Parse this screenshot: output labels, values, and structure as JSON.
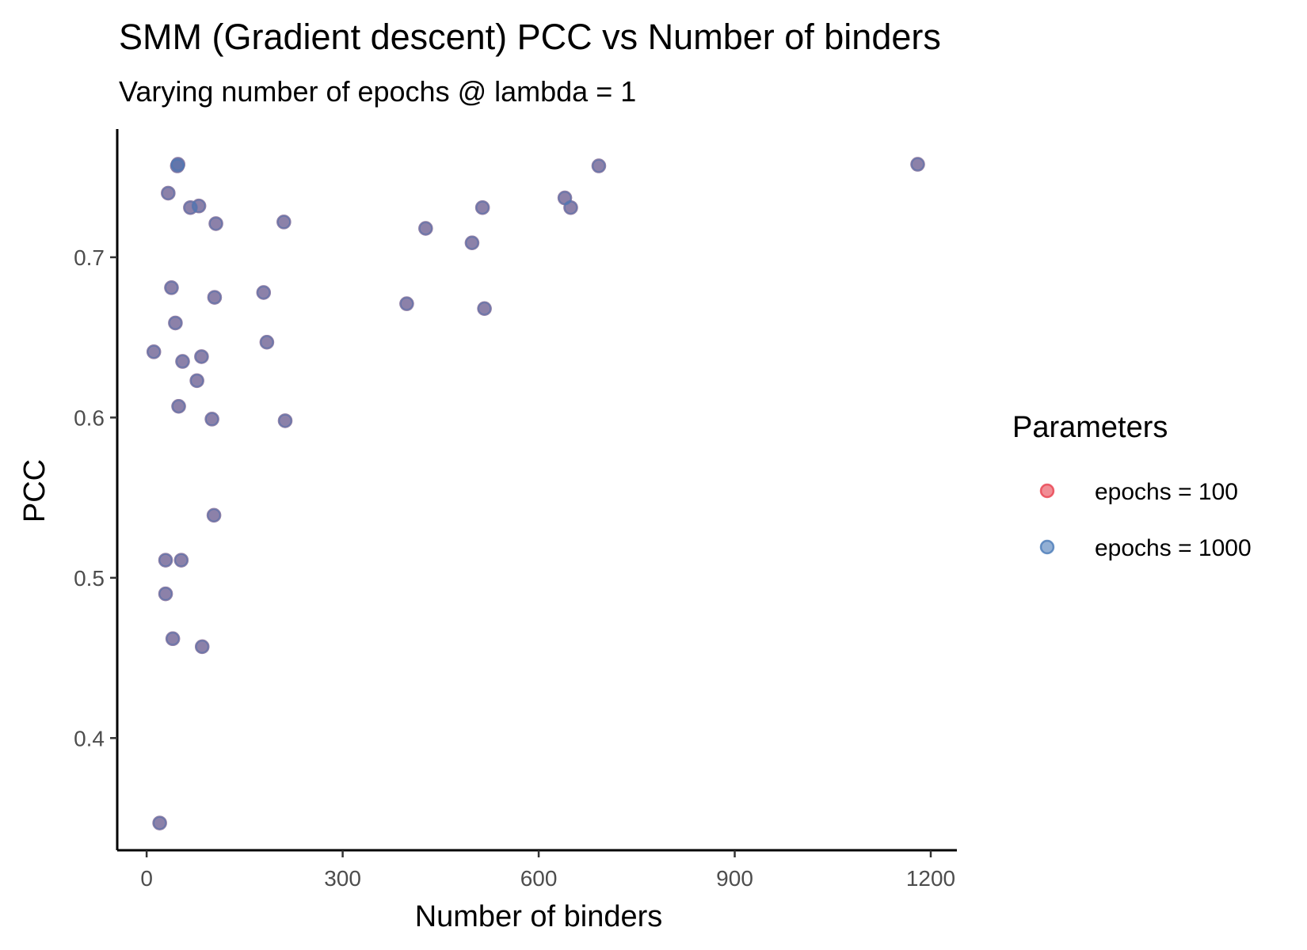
{
  "chart_data": {
    "type": "scatter",
    "title": "SMM (Gradient descent) PCC vs Number of binders",
    "subtitle": "Varying number of epochs @ lambda = 1",
    "xlabel": "Number of binders",
    "ylabel": "PCC",
    "xlim": [
      -45,
      1240
    ],
    "ylim": [
      0.33,
      0.78
    ],
    "xticks": [
      0,
      300,
      600,
      900,
      1200
    ],
    "yticks": [
      0.4,
      0.5,
      0.6,
      0.7
    ],
    "xtick_labels": [
      "0",
      "300",
      "600",
      "900",
      "1200"
    ],
    "ytick_labels": [
      "0.4",
      "0.5",
      "0.6",
      "0.7"
    ],
    "grid": false,
    "legend": {
      "title": "Parameters",
      "position": "right",
      "entries": [
        {
          "label": "epochs = 100",
          "color": "#e8414f"
        },
        {
          "label": "epochs = 1000",
          "color": "#4a7ab8"
        }
      ]
    },
    "overlap_color": "#a3335a",
    "series": [
      {
        "name": "epochs = 100",
        "color": "#e8414f",
        "points": [
          {
            "x": 48,
            "y": 0.758
          },
          {
            "x": 47,
            "y": 0.757
          },
          {
            "x": 33,
            "y": 0.74
          },
          {
            "x": 80,
            "y": 0.732
          },
          {
            "x": 67,
            "y": 0.731
          },
          {
            "x": 106,
            "y": 0.721
          },
          {
            "x": 210,
            "y": 0.722
          },
          {
            "x": 38,
            "y": 0.681
          },
          {
            "x": 104,
            "y": 0.675
          },
          {
            "x": 179,
            "y": 0.678
          },
          {
            "x": 44,
            "y": 0.659
          },
          {
            "x": 184,
            "y": 0.647
          },
          {
            "x": 11,
            "y": 0.641
          },
          {
            "x": 84,
            "y": 0.638
          },
          {
            "x": 55,
            "y": 0.635
          },
          {
            "x": 77,
            "y": 0.623
          },
          {
            "x": 49,
            "y": 0.607
          },
          {
            "x": 100,
            "y": 0.599
          },
          {
            "x": 212,
            "y": 0.598
          },
          {
            "x": 103,
            "y": 0.539
          },
          {
            "x": 29,
            "y": 0.511
          },
          {
            "x": 53,
            "y": 0.511
          },
          {
            "x": 29,
            "y": 0.49
          },
          {
            "x": 40,
            "y": 0.462
          },
          {
            "x": 85,
            "y": 0.457
          },
          {
            "x": 20,
            "y": 0.347
          },
          {
            "x": 398,
            "y": 0.671
          },
          {
            "x": 427,
            "y": 0.718
          },
          {
            "x": 498,
            "y": 0.709
          },
          {
            "x": 514,
            "y": 0.731
          },
          {
            "x": 517,
            "y": 0.668
          },
          {
            "x": 640,
            "y": 0.737
          },
          {
            "x": 649,
            "y": 0.731
          },
          {
            "x": 692,
            "y": 0.757
          },
          {
            "x": 1180,
            "y": 0.758
          }
        ]
      },
      {
        "name": "epochs = 1000",
        "color": "#4a7ab8",
        "points": [
          {
            "x": 48,
            "y": 0.758
          },
          {
            "x": 47,
            "y": 0.757
          },
          {
            "x": 33,
            "y": 0.74
          },
          {
            "x": 80,
            "y": 0.732
          },
          {
            "x": 67,
            "y": 0.731
          },
          {
            "x": 106,
            "y": 0.721
          },
          {
            "x": 210,
            "y": 0.722
          },
          {
            "x": 38,
            "y": 0.681
          },
          {
            "x": 104,
            "y": 0.675
          },
          {
            "x": 179,
            "y": 0.678
          },
          {
            "x": 44,
            "y": 0.659
          },
          {
            "x": 184,
            "y": 0.647
          },
          {
            "x": 11,
            "y": 0.641
          },
          {
            "x": 84,
            "y": 0.638
          },
          {
            "x": 55,
            "y": 0.635
          },
          {
            "x": 77,
            "y": 0.623
          },
          {
            "x": 49,
            "y": 0.607
          },
          {
            "x": 100,
            "y": 0.599
          },
          {
            "x": 212,
            "y": 0.598
          },
          {
            "x": 103,
            "y": 0.539
          },
          {
            "x": 29,
            "y": 0.511
          },
          {
            "x": 53,
            "y": 0.511
          },
          {
            "x": 29,
            "y": 0.49
          },
          {
            "x": 40,
            "y": 0.462
          },
          {
            "x": 85,
            "y": 0.457
          },
          {
            "x": 20,
            "y": 0.347
          },
          {
            "x": 398,
            "y": 0.671
          },
          {
            "x": 427,
            "y": 0.718
          },
          {
            "x": 498,
            "y": 0.709
          },
          {
            "x": 514,
            "y": 0.731
          },
          {
            "x": 517,
            "y": 0.668
          },
          {
            "x": 640,
            "y": 0.737
          },
          {
            "x": 649,
            "y": 0.731
          },
          {
            "x": 692,
            "y": 0.757
          },
          {
            "x": 1180,
            "y": 0.758
          }
        ]
      }
    ]
  }
}
